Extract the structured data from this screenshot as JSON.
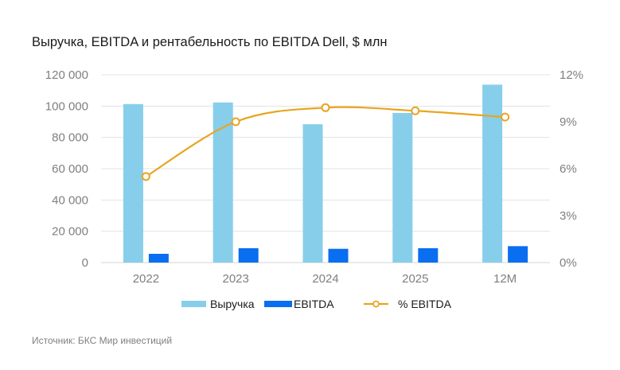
{
  "title": "Выручка, EBITDA и рентабельность по EBITDA Dell, $ млн",
  "source": "Источник: БКС Мир инвестиций",
  "colors": {
    "revenue": "#87ceeb",
    "ebitda": "#0a6ef0",
    "margin": "#e8a520",
    "grid": "#e3e3e3",
    "tick": "#7f7f7f"
  },
  "chart_data": {
    "type": "bar",
    "title": "Выручка, EBITDA и рентабельность по EBITDA Dell, $ млн",
    "categories": [
      "2022",
      "2023",
      "2024",
      "2025",
      "12M"
    ],
    "series": [
      {
        "name": "Выручка",
        "type": "bar",
        "axis": "left",
        "values": [
          101300,
          102300,
          88400,
          95600,
          113700
        ]
      },
      {
        "name": "EBITDA",
        "type": "bar",
        "axis": "left",
        "values": [
          5600,
          9200,
          8800,
          9200,
          10500
        ]
      },
      {
        "name": "% EBITDA",
        "type": "line",
        "axis": "right",
        "marker": "hollow-circle",
        "smooth": true,
        "values": [
          5.5,
          9.0,
          9.9,
          9.7,
          9.3
        ]
      }
    ],
    "y_left": {
      "min": 0,
      "max": 120000,
      "ticks": [
        0,
        20000,
        40000,
        60000,
        80000,
        100000,
        120000
      ],
      "tick_labels": [
        "0",
        "20 000",
        "40 000",
        "60 000",
        "80 000",
        "100 000",
        "120 000"
      ]
    },
    "y_right": {
      "min": 0,
      "max": 12,
      "unit": "%",
      "ticks": [
        0,
        3,
        6,
        9,
        12
      ],
      "tick_labels": [
        "0%",
        "3%",
        "6%",
        "9%",
        "12%"
      ]
    },
    "xlabel": "",
    "ylabel": "",
    "grid": true,
    "legend": {
      "position": "bottom",
      "entries": [
        "Выручка",
        "EBITDA",
        "% EBITDA"
      ]
    }
  }
}
